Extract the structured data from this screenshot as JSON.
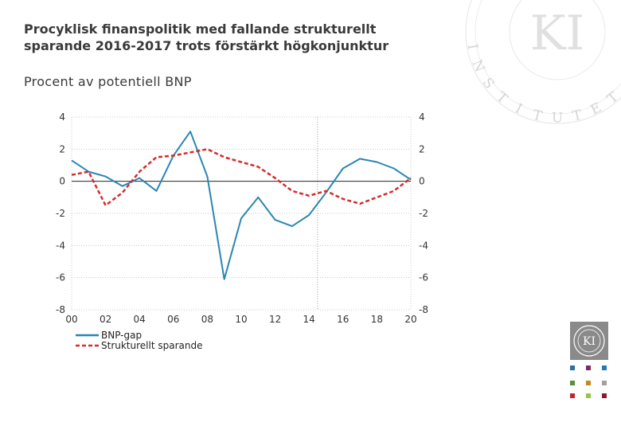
{
  "header": {
    "title_line1": "Procyklisk finanspolitik med fallande strukturellt",
    "title_line2": "sparande 2016-2017 trots förstärkt högkonjunktur",
    "subtitle": "Procent av potentiell BNP"
  },
  "watermark": {
    "text": "INSTITUTET",
    "monogram": "KI"
  },
  "logo": {
    "monogram": "KI",
    "swatch_colors": [
      "#2e6da4",
      "#7b2d5b",
      "#1f7ab5",
      "#5a8f3a",
      "#c08a1e",
      "#a0a0a0",
      "#c0282d",
      "#9ac24a",
      "#8b1a2b"
    ]
  },
  "chart_data": {
    "type": "line",
    "title": "Procyklisk finanspolitik med fallande strukturellt sparande 2016-2017 trots förstärkt högkonjunktur",
    "ylabel": "Procent av potentiell BNP",
    "xlabel": "",
    "ylim": [
      -8,
      4
    ],
    "yticks": [
      4,
      2,
      0,
      -2,
      -4,
      -6,
      -8
    ],
    "xlim": [
      2000,
      2020
    ],
    "xtick_labels": [
      "00",
      "02",
      "04",
      "06",
      "08",
      "10",
      "12",
      "14",
      "16",
      "18",
      "20"
    ],
    "xtick_years": [
      2000,
      2002,
      2004,
      2006,
      2008,
      2010,
      2012,
      2014,
      2016,
      2018,
      2020
    ],
    "forecast_start_year": 2014.5,
    "grid": true,
    "legend_position": "bottom-left",
    "years": [
      2000,
      2001,
      2002,
      2003,
      2004,
      2005,
      2006,
      2007,
      2008,
      2009,
      2010,
      2011,
      2012,
      2013,
      2014,
      2015,
      2016,
      2017,
      2018,
      2019,
      2020
    ],
    "series": [
      {
        "name": "BNP-gap",
        "color": "#2a86b4",
        "style": "solid",
        "values": [
          1.3,
          0.6,
          0.3,
          -0.3,
          0.2,
          -0.6,
          1.6,
          3.1,
          0.3,
          -6.1,
          -2.3,
          -1.0,
          -2.4,
          -2.8,
          -2.1,
          -0.7,
          0.8,
          1.4,
          1.2,
          0.8,
          0.1
        ]
      },
      {
        "name": "Strukturellt sparande",
        "color": "#d42c2c",
        "style": "dashed",
        "values": [
          0.4,
          0.6,
          -1.5,
          -0.7,
          0.6,
          1.5,
          1.6,
          1.8,
          2.0,
          1.5,
          1.2,
          0.9,
          0.2,
          -0.6,
          -0.9,
          -0.6,
          -1.1,
          -1.4,
          -1.0,
          -0.6,
          0.2
        ]
      }
    ]
  }
}
